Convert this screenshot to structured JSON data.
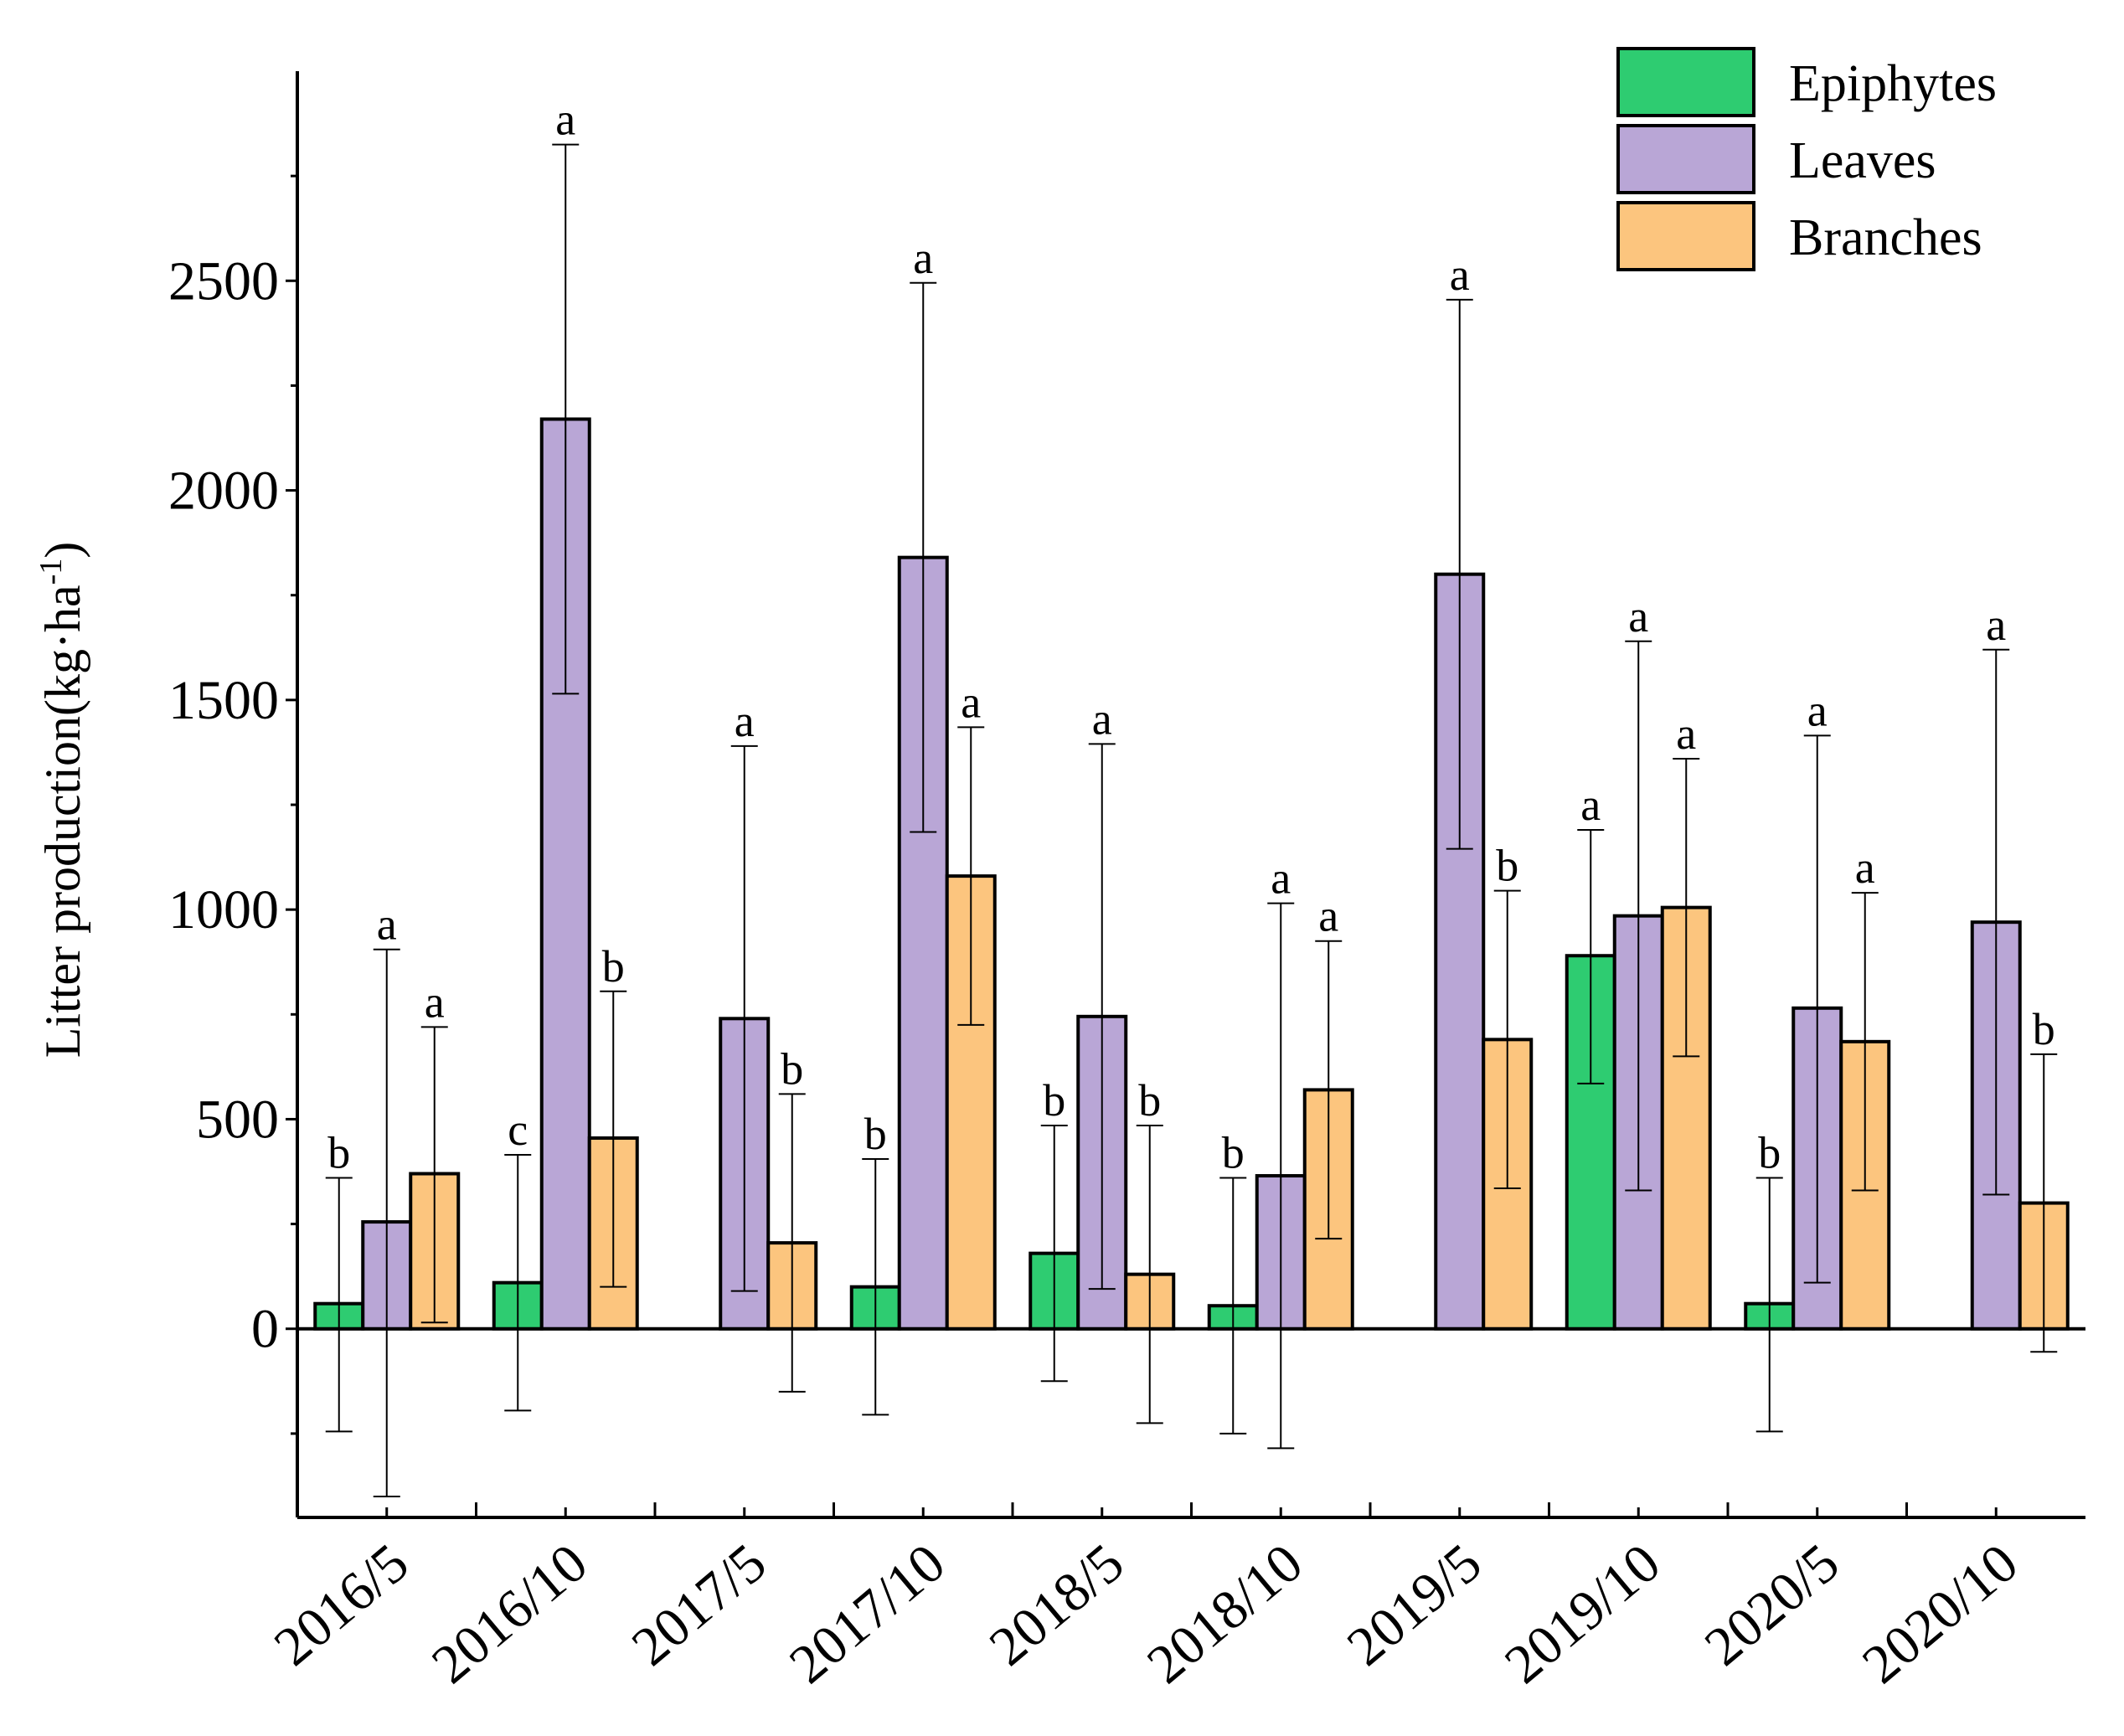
{
  "chart_data": {
    "type": "bar",
    "ylabel": "Litter production(kg·ha",
    "ylabel_sup": "-1",
    "ylabel_close": ")",
    "ylim": [
      -450,
      3000
    ],
    "yticks": [
      0,
      500,
      1000,
      1500,
      2000,
      2500
    ],
    "categories": [
      "2016/5",
      "2016/10",
      "2017/5",
      "2017/10",
      "2018/5",
      "2018/10",
      "2019/5",
      "2019/10",
      "2020/5",
      "2020/10"
    ],
    "series": [
      {
        "name": "Epiphytes",
        "color": "#2ECC71",
        "values": [
          60,
          110,
          0,
          100,
          180,
          55,
          0,
          890,
          60,
          0
        ],
        "err_high": [
          360,
          415,
          null,
          405,
          485,
          360,
          null,
          1190,
          360,
          null
        ],
        "err_low": [
          -245,
          -195,
          null,
          -205,
          -125,
          -250,
          null,
          585,
          -245,
          null
        ],
        "letters": [
          "b",
          "c",
          "",
          "b",
          "b",
          "b",
          "",
          "a",
          "b",
          ""
        ]
      },
      {
        "name": "Leaves",
        "color": "#B9A6D6",
        "values": [
          255,
          2170,
          740,
          1840,
          745,
          365,
          1800,
          985,
          765,
          970
        ],
        "err_high": [
          905,
          2825,
          1390,
          2495,
          1395,
          1015,
          2455,
          1640,
          1415,
          1620
        ],
        "err_low": [
          -400,
          1515,
          90,
          1185,
          95,
          -285,
          1145,
          330,
          110,
          320
        ],
        "letters": [
          "a",
          "a",
          "a",
          "a",
          "a",
          "a",
          "a",
          "a",
          "a",
          "a"
        ]
      },
      {
        "name": "Branches",
        "color": "#FCC57E",
        "values": [
          370,
          455,
          205,
          1080,
          130,
          570,
          690,
          1005,
          685,
          300
        ],
        "err_high": [
          720,
          805,
          560,
          1435,
          485,
          925,
          1045,
          1360,
          1040,
          655
        ],
        "err_low": [
          15,
          100,
          -150,
          725,
          -225,
          215,
          335,
          650,
          330,
          -55
        ],
        "letters": [
          "a",
          "b",
          "b",
          "a",
          "b",
          "a",
          "b",
          "a",
          "a",
          "b"
        ]
      }
    ]
  }
}
